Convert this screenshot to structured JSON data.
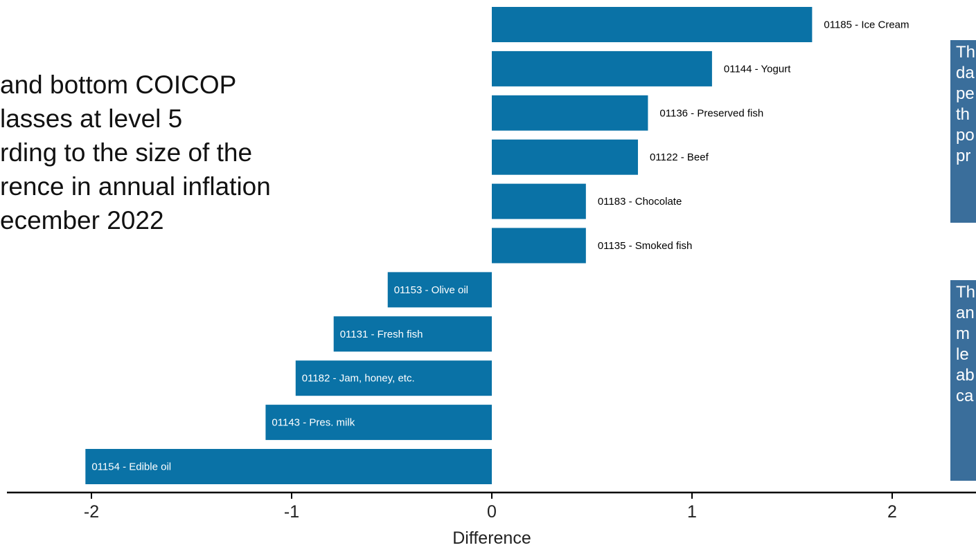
{
  "title_lines": [
    "and bottom COICOP",
    "lasses at level 5",
    "rding to the size of the",
    "rence in annual inflation",
    "ecember 2022"
  ],
  "notes": [
    {
      "lines": [
        "Th",
        "da",
        "pe",
        "th",
        "po",
        "pr"
      ]
    },
    {
      "lines": [
        "Th",
        "an",
        "m",
        "le",
        "ab",
        "ca"
      ]
    }
  ],
  "colors": {
    "bar": "#0a72a6",
    "note_bg": "#3a6e9b",
    "axis": "#000000"
  },
  "chart_data": {
    "type": "bar",
    "orientation": "horizontal",
    "xlabel": "Difference",
    "ylabel": "",
    "xlim": [
      -2.45,
      2.45
    ],
    "xticks": [
      -2,
      -1,
      0,
      1,
      2
    ],
    "xtick_labels": [
      "-2",
      "-1",
      "0",
      "1",
      "2"
    ],
    "categories": [
      "01185 - Ice Cream",
      "01144 - Yogurt",
      "01136 - Preserved fish",
      "01122 - Beef",
      "01183 - Chocolate",
      "01135 - Smoked fish",
      "01153 - Olive oil",
      "01131 - Fresh fish",
      "01182 - Jam, honey, etc.",
      "01143 - Pres. milk",
      "01154 - Edible oil"
    ],
    "values": [
      1.6,
      1.1,
      0.78,
      0.73,
      0.47,
      0.47,
      -0.52,
      -0.79,
      -0.98,
      -1.13,
      -2.03
    ]
  }
}
